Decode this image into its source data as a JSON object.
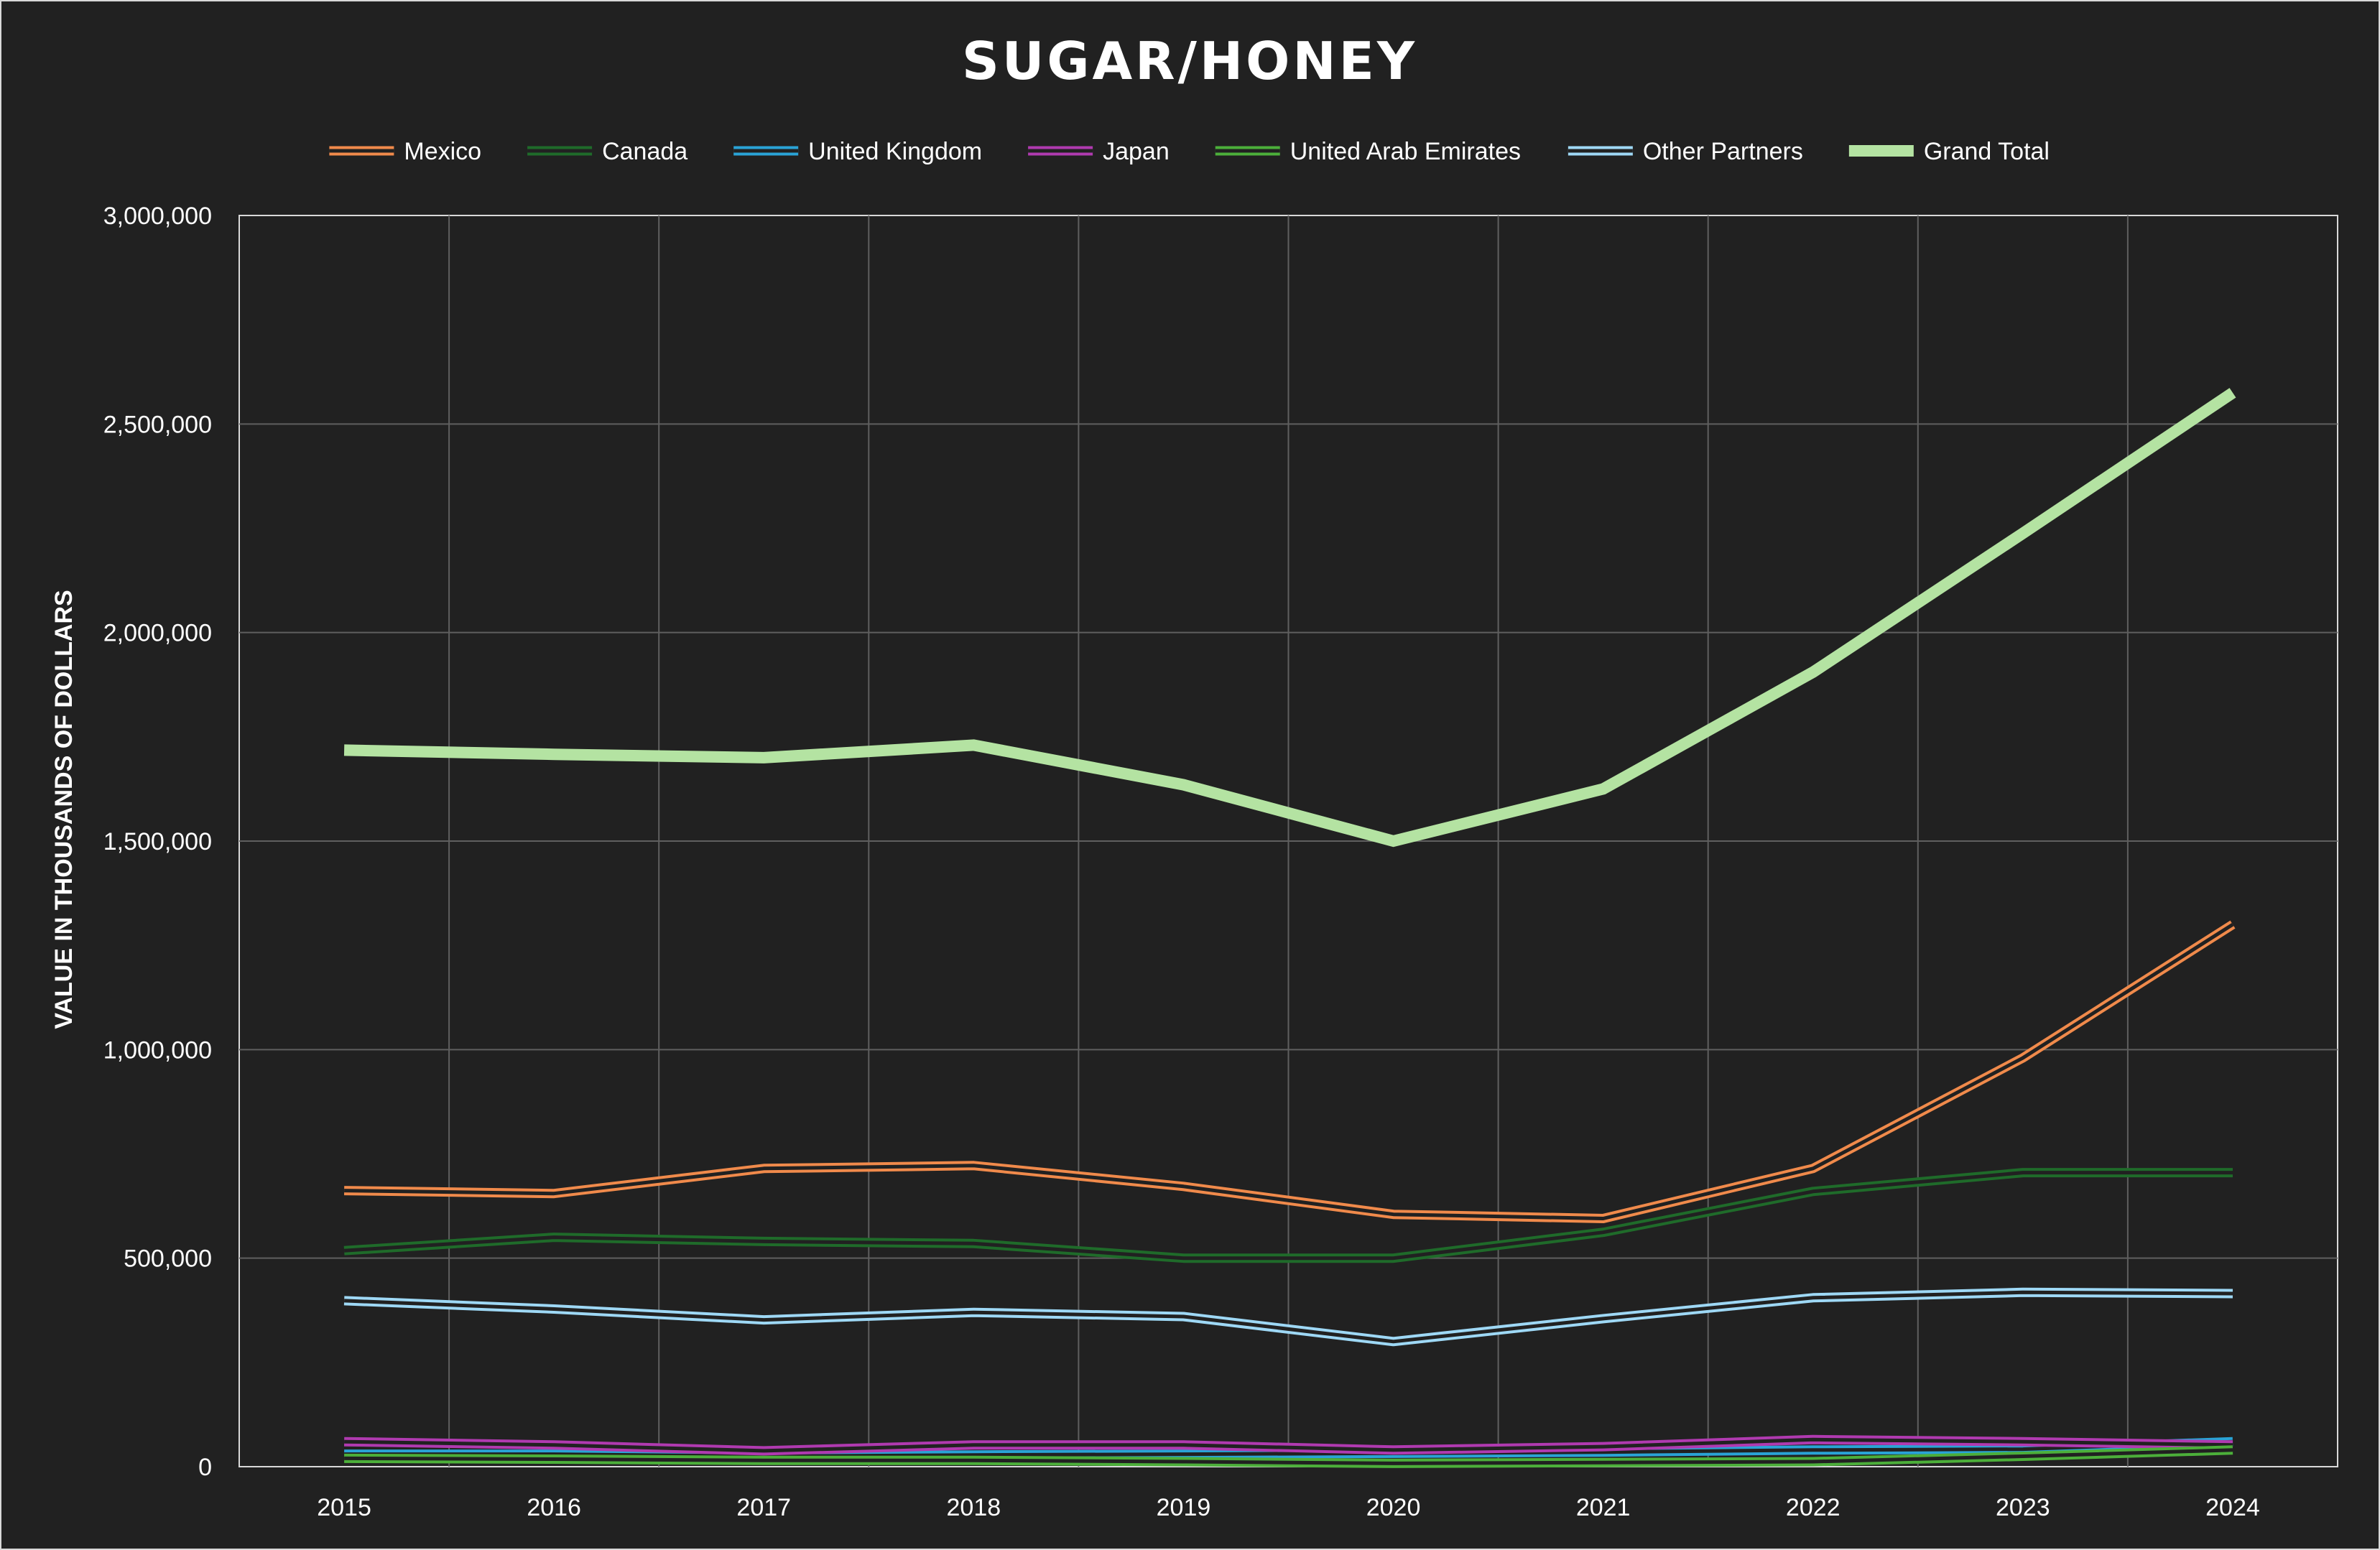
{
  "chart_data": {
    "type": "line",
    "title": "SUGAR/HONEY",
    "xlabel": "",
    "ylabel": "VALUE IN THOUSANDS OF DOLLARS",
    "x": [
      "2015",
      "2016",
      "2017",
      "2018",
      "2019",
      "2020",
      "2021",
      "2022",
      "2023",
      "2024"
    ],
    "ylim": [
      0,
      3000000
    ],
    "yticks": [
      0,
      500000,
      1000000,
      1500000,
      2000000,
      2500000,
      3000000
    ],
    "ytick_labels": [
      "0",
      "500,000",
      "1,000,000",
      "1,500,000",
      "2,000,000",
      "2,500,000",
      "3,000,000"
    ],
    "grid": true,
    "legend_position": "top",
    "series": [
      {
        "name": "Mexico",
        "color": "#f08a4b",
        "style": "double",
        "values": [
          662000,
          655000,
          715000,
          722000,
          672000,
          605000,
          595000,
          715000,
          980000,
          1300000
        ]
      },
      {
        "name": "Canada",
        "color": "#1f6b2a",
        "style": "double",
        "values": [
          518000,
          550000,
          540000,
          535000,
          500000,
          500000,
          562000,
          660000,
          705000,
          705000
        ]
      },
      {
        "name": "United Kingdom",
        "color": "#2aa3d6",
        "style": "double",
        "values": [
          30000,
          30000,
          25000,
          28000,
          30000,
          32000,
          35000,
          40000,
          42000,
          60000
        ]
      },
      {
        "name": "Japan",
        "color": "#b03ab0",
        "style": "double",
        "values": [
          60000,
          52000,
          38000,
          52000,
          52000,
          40000,
          48000,
          65000,
          60000,
          52000
        ]
      },
      {
        "name": "United Arab Emirates",
        "color": "#4caf3a",
        "style": "double",
        "values": [
          20000,
          18000,
          15000,
          15000,
          12000,
          8000,
          10000,
          12000,
          25000,
          40000
        ]
      },
      {
        "name": "Other Partners",
        "color": "#9ed8f5",
        "style": "double",
        "values": [
          398000,
          378000,
          352000,
          370000,
          360000,
          300000,
          355000,
          405000,
          418000,
          415000
        ]
      },
      {
        "name": "Grand Total",
        "color": "#b4e3a2",
        "style": "thick",
        "values": [
          1718000,
          1708000,
          1700000,
          1730000,
          1635000,
          1500000,
          1625000,
          1905000,
          2238000,
          2575000
        ]
      }
    ]
  }
}
